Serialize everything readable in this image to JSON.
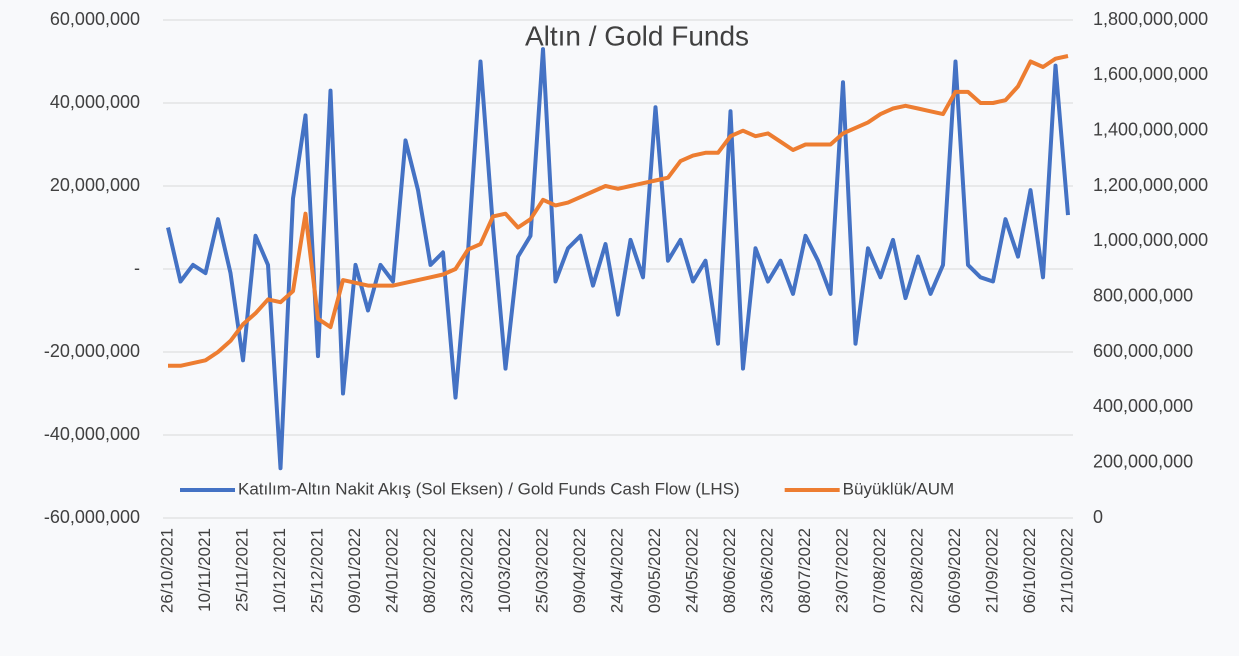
{
  "chart_data": {
    "type": "line",
    "title": "Altın / Gold Funds",
    "categories": [
      "26/10/2021",
      null,
      null,
      "10/11/2021",
      null,
      null,
      "25/11/2021",
      null,
      null,
      "10/12/2021",
      null,
      null,
      "25/12/2021",
      null,
      null,
      "09/01/2022",
      null,
      null,
      "24/01/2022",
      null,
      null,
      "08/02/2022",
      null,
      null,
      "23/02/2022",
      null,
      null,
      "10/03/2022",
      null,
      null,
      "25/03/2022",
      null,
      null,
      "09/04/2022",
      null,
      null,
      "24/04/2022",
      null,
      null,
      "09/05/2022",
      null,
      null,
      "24/05/2022",
      null,
      null,
      "08/06/2022",
      null,
      null,
      "23/06/2022",
      null,
      null,
      "08/07/2022",
      null,
      null,
      "23/07/2022",
      null,
      null,
      "07/08/2022",
      null,
      null,
      "22/08/2022",
      null,
      null,
      "06/09/2022",
      null,
      null,
      "21/09/2022",
      null,
      null,
      "06/10/2022",
      null,
      null,
      "21/10/2022"
    ],
    "series": [
      {
        "name": "Katılım-Altın Nakit Akış (Sol Eksen) / Gold Funds Cash Flow (LHS)",
        "color": "#4472c4",
        "axis": "y",
        "values": [
          10000000,
          -3000000,
          1000000,
          -1000000,
          12000000,
          -1000000,
          -22000000,
          8000000,
          1000000,
          -48000000,
          17000000,
          37000000,
          -21000000,
          43000000,
          -30000000,
          1000000,
          -10000000,
          1000000,
          -3000000,
          31000000,
          19000000,
          1000000,
          4000000,
          -31000000,
          4000000,
          50000000,
          10000000,
          -24000000,
          3000000,
          8000000,
          53000000,
          -3000000,
          5000000,
          8000000,
          -4000000,
          6000000,
          -11000000,
          7000000,
          -2000000,
          39000000,
          2000000,
          7000000,
          -3000000,
          2000000,
          -18000000,
          38000000,
          -24000000,
          5000000,
          -3000000,
          2000000,
          -6000000,
          8000000,
          2000000,
          -6000000,
          45000000,
          -18000000,
          5000000,
          -2000000,
          7000000,
          -7000000,
          3000000,
          -6000000,
          1000000,
          50000000,
          1000000,
          -2000000,
          -3000000,
          12000000,
          3000000,
          19000000,
          -2000000,
          49000000,
          13000000
        ]
      },
      {
        "name": "Büyüklük/AUM",
        "color": "#ed7d31",
        "axis": "y2",
        "values": [
          550000000,
          550000000,
          560000000,
          570000000,
          600000000,
          640000000,
          700000000,
          740000000,
          790000000,
          780000000,
          820000000,
          1100000000,
          720000000,
          690000000,
          860000000,
          850000000,
          840000000,
          840000000,
          840000000,
          850000000,
          860000000,
          870000000,
          880000000,
          900000000,
          970000000,
          990000000,
          1090000000,
          1100000000,
          1050000000,
          1080000000,
          1150000000,
          1130000000,
          1140000000,
          1160000000,
          1180000000,
          1200000000,
          1190000000,
          1200000000,
          1210000000,
          1220000000,
          1230000000,
          1290000000,
          1310000000,
          1320000000,
          1320000000,
          1380000000,
          1400000000,
          1380000000,
          1390000000,
          1360000000,
          1330000000,
          1350000000,
          1350000000,
          1350000000,
          1390000000,
          1410000000,
          1430000000,
          1460000000,
          1480000000,
          1490000000,
          1480000000,
          1470000000,
          1460000000,
          1540000000,
          1540000000,
          1500000000,
          1500000000,
          1510000000,
          1560000000,
          1650000000,
          1630000000,
          1660000000,
          1670000000
        ]
      }
    ],
    "ylim": [
      -60000000,
      60000000
    ],
    "yticks": [
      {
        "value": -60000000,
        "label": "-60,000,000"
      },
      {
        "value": -40000000,
        "label": "-40,000,000"
      },
      {
        "value": -20000000,
        "label": "-20,000,000"
      },
      {
        "value": 0,
        "label": "-"
      },
      {
        "value": 20000000,
        "label": "20,000,000"
      },
      {
        "value": 40000000,
        "label": "40,000,000"
      },
      {
        "value": 60000000,
        "label": "60,000,000"
      }
    ],
    "y2lim": [
      0,
      1800000000
    ],
    "y2ticks": [
      0,
      {
        "value": 200000000,
        "label": "200,000,000"
      },
      {
        "value": 400000000,
        "label": "400,000,000"
      },
      {
        "value": 600000000,
        "label": "600,000,000"
      },
      {
        "value": 800000000,
        "label": "800,000,000"
      },
      {
        "value": 1000000000,
        "label": "1,000,000,000"
      },
      {
        "value": 1200000000,
        "label": "1,200,000,000"
      },
      {
        "value": 1400000000,
        "label": "1,400,000,000"
      },
      {
        "value": 1600000000,
        "label": "1,600,000,000"
      },
      {
        "value": 1800000000,
        "label": "1,800,000,000"
      }
    ],
    "grid": true,
    "legend": "bottom"
  }
}
